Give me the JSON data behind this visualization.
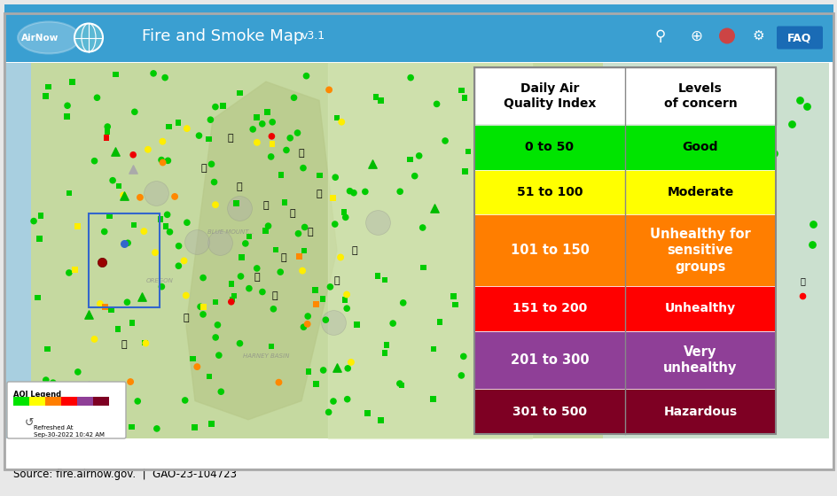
{
  "title": "Fire and Smoke Map",
  "version": "v3.1",
  "source_text": "Source: fire.airnow.gov.  |  GAO-23-104723",
  "header_bg": "#3a9fd1",
  "fig_width": 9.45,
  "fig_height": 5.6,
  "dpi": 100,
  "table_rows": [
    {
      "range": "0 to 50",
      "level": "Good",
      "color": "#00e400",
      "text_color": "#000000"
    },
    {
      "range": "51 to 100",
      "level": "Moderate",
      "color": "#ffff00",
      "text_color": "#000000"
    },
    {
      "range": "101 to 150",
      "level": "Unhealthy for\nsensitive\ngroups",
      "color": "#ff7e00",
      "text_color": "#ffffff"
    },
    {
      "range": "151 to 200",
      "level": "Unhealthy",
      "color": "#ff0000",
      "text_color": "#ffffff"
    },
    {
      "range": "201 to 300",
      "level": "Very\nunhealthy",
      "color": "#8f3f97",
      "text_color": "#ffffff"
    },
    {
      "range": "301 to 500",
      "level": "Hazardous",
      "color": "#7e0023",
      "text_color": "#ffffff"
    }
  ],
  "aqi_legend_label": "AQI Legend",
  "refresh_label": "Refreshed At\nSep-30-2022 10:42 AM",
  "map_terrain_color": "#c5d9a0",
  "map_mountain_color": "#b5c990",
  "map_plain_color": "#d8e8b8",
  "map_water_color": "#a8cfe0",
  "outer_border_color": "#999999"
}
